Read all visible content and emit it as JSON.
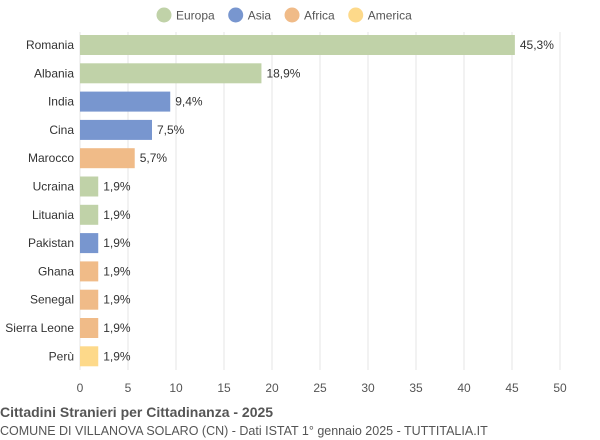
{
  "chart_data": {
    "type": "bar",
    "orientation": "horizontal",
    "title": "Cittadini Stranieri per Cittadinanza - 2025",
    "subtitle": "COMUNE DI VILLANOVA SOLARO (CN) - Dati ISTAT 1° gennaio 2025 - TUTTITALIA.IT",
    "legend_position": "top",
    "legend": [
      {
        "name": "Europa",
        "color": "#c0d2a8"
      },
      {
        "name": "Asia",
        "color": "#7896cf"
      },
      {
        "name": "Africa",
        "color": "#f0bb88"
      },
      {
        "name": "America",
        "color": "#fdd98a"
      }
    ],
    "categories": [
      "Romania",
      "Albania",
      "India",
      "Cina",
      "Marocco",
      "Ucraina",
      "Lituania",
      "Pakistan",
      "Ghana",
      "Senegal",
      "Sierra Leone",
      "Perù"
    ],
    "values": [
      45.3,
      18.9,
      9.4,
      7.5,
      5.7,
      1.9,
      1.9,
      1.9,
      1.9,
      1.9,
      1.9,
      1.9
    ],
    "labels": [
      "45,3%",
      "18,9%",
      "9,4%",
      "7,5%",
      "5,7%",
      "1,9%",
      "1,9%",
      "1,9%",
      "1,9%",
      "1,9%",
      "1,9%",
      "1,9%"
    ],
    "groups": [
      "Europa",
      "Europa",
      "Asia",
      "Asia",
      "Africa",
      "Europa",
      "Europa",
      "Asia",
      "Africa",
      "Africa",
      "Africa",
      "America"
    ],
    "xlim": [
      0,
      50
    ],
    "xticks": [
      0,
      5,
      10,
      15,
      20,
      25,
      30,
      35,
      40,
      45,
      50
    ],
    "grid": true
  }
}
